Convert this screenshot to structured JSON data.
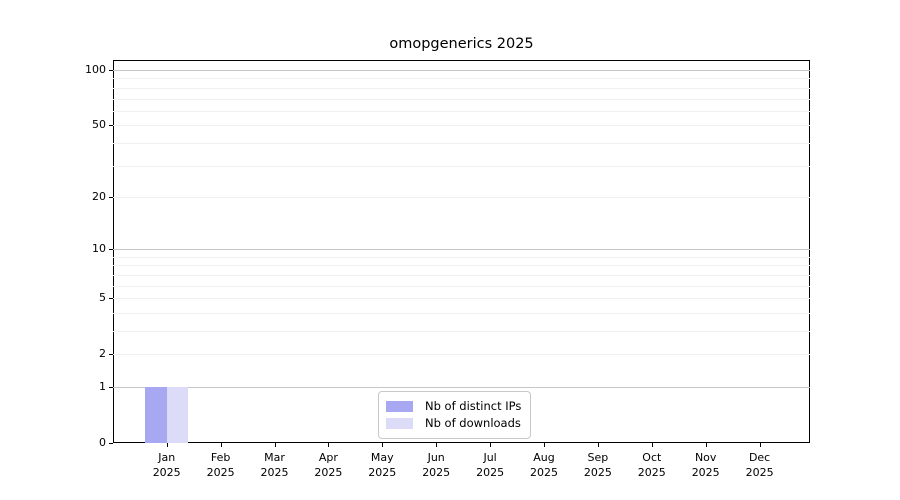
{
  "title": "omopgenerics 2025",
  "legend": {
    "items": [
      {
        "label": "Nb of distinct IPs",
        "color": "#a8a8f2"
      },
      {
        "label": "Nb of downloads",
        "color": "#dcdcf8"
      }
    ]
  },
  "colors": {
    "bar_distinct_ips": "#a8a8f2",
    "bar_downloads": "#dcdcf8",
    "grid_major": "#c6c6c6",
    "grid_minor": "#efefef",
    "spine": "#000000",
    "text": "#000000"
  },
  "chart_data": {
    "type": "bar",
    "title": "omopgenerics 2025",
    "categories": [
      {
        "month": "Jan",
        "year": "2025"
      },
      {
        "month": "Feb",
        "year": "2025"
      },
      {
        "month": "Mar",
        "year": "2025"
      },
      {
        "month": "Apr",
        "year": "2025"
      },
      {
        "month": "May",
        "year": "2025"
      },
      {
        "month": "Jun",
        "year": "2025"
      },
      {
        "month": "Jul",
        "year": "2025"
      },
      {
        "month": "Aug",
        "year": "2025"
      },
      {
        "month": "Sep",
        "year": "2025"
      },
      {
        "month": "Oct",
        "year": "2025"
      },
      {
        "month": "Nov",
        "year": "2025"
      },
      {
        "month": "Dec",
        "year": "2025"
      }
    ],
    "series": [
      {
        "name": "Nb of distinct IPs",
        "color": "#a8a8f2",
        "values": [
          1,
          0,
          0,
          0,
          0,
          0,
          0,
          0,
          0,
          0,
          0,
          0
        ]
      },
      {
        "name": "Nb of downloads",
        "color": "#dcdcf8",
        "values": [
          1,
          0,
          0,
          0,
          0,
          0,
          0,
          0,
          0,
          0,
          0,
          0
        ]
      }
    ],
    "xlabel": "",
    "ylabel": "",
    "y_axis": {
      "scale": "log10(1+y)",
      "range": [
        0,
        114
      ],
      "tick_values": [
        100,
        50,
        20,
        10,
        5,
        2,
        1,
        0
      ],
      "major_gridlines": [
        1,
        10,
        100
      ],
      "minor_gridlines": [
        2,
        3,
        4,
        5,
        6,
        7,
        8,
        9,
        20,
        30,
        40,
        50,
        60,
        70,
        80,
        90
      ]
    },
    "grid": true,
    "legend_position": "lower-center-inside"
  }
}
